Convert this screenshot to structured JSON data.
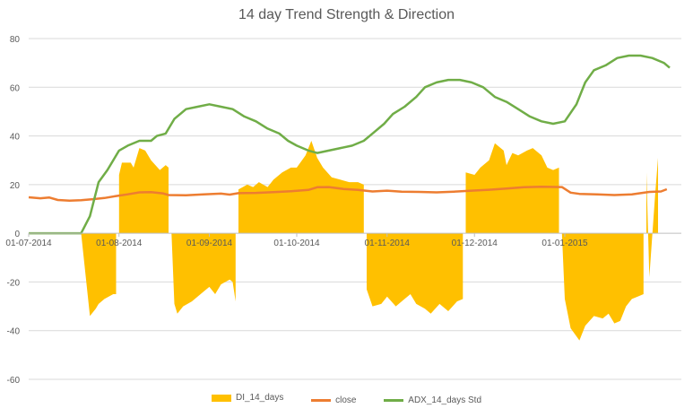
{
  "chart_data": {
    "type": "area",
    "title": "14 day Trend Strength & Direction",
    "ylim": [
      -60,
      80
    ],
    "yticks": [
      80,
      60,
      40,
      20,
      0,
      -20,
      -40,
      -60
    ],
    "x_date_range": [
      "2014-07-01",
      "2015-02-10"
    ],
    "xticks": [
      {
        "date": "2014-07-01",
        "label": "01-07-2014"
      },
      {
        "date": "2014-08-01",
        "label": "01-08-2014"
      },
      {
        "date": "2014-09-01",
        "label": "01-09-2014"
      },
      {
        "date": "2014-10-01",
        "label": "01-10-2014"
      },
      {
        "date": "2014-11-01",
        "label": "01-11-2014"
      },
      {
        "date": "2014-12-01",
        "label": "01-12-2014"
      },
      {
        "date": "2015-01-01",
        "label": "01-01-2015"
      }
    ],
    "grid": "horizontal",
    "legend_position": "bottom",
    "series": [
      {
        "name": "DI_14_days",
        "type": "area",
        "color": "#FFC000",
        "points": [
          [
            "2014-07-19",
            0
          ],
          [
            "2014-07-22",
            -34
          ],
          [
            "2014-07-24",
            -31
          ],
          [
            "2014-07-25",
            -29
          ],
          [
            "2014-07-27",
            -27
          ],
          [
            "2014-07-30",
            -25
          ],
          [
            "2014-07-31",
            -25
          ],
          [
            "2014-07-31",
            0
          ],
          [
            "2014-08-01",
            0
          ],
          [
            "2014-08-01",
            24
          ],
          [
            "2014-08-02",
            29
          ],
          [
            "2014-08-05",
            29
          ],
          [
            "2014-08-06",
            27
          ],
          [
            "2014-08-08",
            35
          ],
          [
            "2014-08-10",
            34
          ],
          [
            "2014-08-12",
            30
          ],
          [
            "2014-08-15",
            26
          ],
          [
            "2014-08-17",
            28
          ],
          [
            "2014-08-18",
            27
          ],
          [
            "2014-08-18",
            0
          ],
          [
            "2014-08-19",
            0
          ],
          [
            "2014-08-20",
            -29
          ],
          [
            "2014-08-21",
            -33
          ],
          [
            "2014-08-23",
            -30
          ],
          [
            "2014-08-26",
            -28
          ],
          [
            "2014-08-30",
            -24
          ],
          [
            "2014-09-01",
            -22
          ],
          [
            "2014-09-03",
            -25
          ],
          [
            "2014-09-05",
            -21
          ],
          [
            "2014-09-08",
            -19
          ],
          [
            "2014-09-09",
            -20
          ],
          [
            "2014-09-10",
            -28
          ],
          [
            "2014-09-10",
            0
          ],
          [
            "2014-09-11",
            0
          ],
          [
            "2014-09-11",
            18
          ],
          [
            "2014-09-14",
            20
          ],
          [
            "2014-09-16",
            19
          ],
          [
            "2014-09-18",
            21
          ],
          [
            "2014-09-21",
            19
          ],
          [
            "2014-09-23",
            22
          ],
          [
            "2014-09-26",
            25
          ],
          [
            "2014-09-29",
            27
          ],
          [
            "2014-10-01",
            27
          ],
          [
            "2014-10-04",
            32
          ],
          [
            "2014-10-06",
            38
          ],
          [
            "2014-10-08",
            31
          ],
          [
            "2014-10-10",
            27
          ],
          [
            "2014-10-13",
            23
          ],
          [
            "2014-10-16",
            22
          ],
          [
            "2014-10-19",
            21
          ],
          [
            "2014-10-22",
            21
          ],
          [
            "2014-10-24",
            20
          ],
          [
            "2014-10-24",
            0
          ],
          [
            "2014-10-25",
            0
          ],
          [
            "2014-10-25",
            -23
          ],
          [
            "2014-10-27",
            -30
          ],
          [
            "2014-10-30",
            -29
          ],
          [
            "2014-11-01",
            -26
          ],
          [
            "2014-11-04",
            -30
          ],
          [
            "2014-11-07",
            -27
          ],
          [
            "2014-11-09",
            -25
          ],
          [
            "2014-11-11",
            -29
          ],
          [
            "2014-11-14",
            -31
          ],
          [
            "2014-11-16",
            -33
          ],
          [
            "2014-11-19",
            -29
          ],
          [
            "2014-11-22",
            -32
          ],
          [
            "2014-11-25",
            -28
          ],
          [
            "2014-11-27",
            -27
          ],
          [
            "2014-11-27",
            0
          ],
          [
            "2014-11-28",
            0
          ],
          [
            "2014-11-28",
            25
          ],
          [
            "2014-12-01",
            24
          ],
          [
            "2014-12-03",
            27
          ],
          [
            "2014-12-06",
            30
          ],
          [
            "2014-12-08",
            37
          ],
          [
            "2014-12-11",
            34
          ],
          [
            "2014-12-12",
            28
          ],
          [
            "2014-12-14",
            33
          ],
          [
            "2014-12-16",
            32
          ],
          [
            "2014-12-19",
            34
          ],
          [
            "2014-12-21",
            35
          ],
          [
            "2014-12-24",
            32
          ],
          [
            "2014-12-26",
            27
          ],
          [
            "2014-12-28",
            26
          ],
          [
            "2014-12-30",
            27
          ],
          [
            "2014-12-30",
            0
          ],
          [
            "2014-12-31",
            0
          ],
          [
            "2015-01-01",
            -27
          ],
          [
            "2015-01-03",
            -39
          ],
          [
            "2015-01-06",
            -44
          ],
          [
            "2015-01-08",
            -38
          ],
          [
            "2015-01-11",
            -34
          ],
          [
            "2015-01-14",
            -35
          ],
          [
            "2015-01-16",
            -33
          ],
          [
            "2015-01-18",
            -37
          ],
          [
            "2015-01-20",
            -36
          ],
          [
            "2015-01-22",
            -30
          ],
          [
            "2015-01-24",
            -27
          ],
          [
            "2015-01-26",
            -26
          ],
          [
            "2015-01-28",
            -25
          ],
          [
            "2015-01-28",
            0
          ],
          [
            "2015-01-29",
            0
          ],
          [
            "2015-01-29",
            25
          ],
          [
            "2015-01-30",
            -18
          ],
          [
            "2015-02-01",
            16
          ],
          [
            "2015-02-02",
            31
          ],
          [
            "2015-02-02",
            0
          ]
        ]
      },
      {
        "name": "close",
        "type": "line",
        "color": "#ED7D31",
        "points": [
          [
            "2014-07-01",
            14.8
          ],
          [
            "2014-07-05",
            14.4
          ],
          [
            "2014-07-08",
            14.7
          ],
          [
            "2014-07-11",
            13.7
          ],
          [
            "2014-07-15",
            13.4
          ],
          [
            "2014-07-19",
            13.6
          ],
          [
            "2014-07-23",
            14.0
          ],
          [
            "2014-07-27",
            14.5
          ],
          [
            "2014-07-31",
            15.3
          ],
          [
            "2014-08-04",
            16.0
          ],
          [
            "2014-08-08",
            16.8
          ],
          [
            "2014-08-12",
            16.9
          ],
          [
            "2014-08-16",
            16.4
          ],
          [
            "2014-08-18",
            15.7
          ],
          [
            "2014-08-24",
            15.6
          ],
          [
            "2014-08-30",
            16.0
          ],
          [
            "2014-09-05",
            16.3
          ],
          [
            "2014-09-08",
            15.9
          ],
          [
            "2014-09-11",
            16.5
          ],
          [
            "2014-09-17",
            16.6
          ],
          [
            "2014-09-23",
            16.9
          ],
          [
            "2014-09-29",
            17.3
          ],
          [
            "2014-10-05",
            17.8
          ],
          [
            "2014-10-08",
            18.9
          ],
          [
            "2014-10-12",
            19.0
          ],
          [
            "2014-10-17",
            18.2
          ],
          [
            "2014-10-22",
            17.8
          ],
          [
            "2014-10-27",
            17.2
          ],
          [
            "2014-11-01",
            17.5
          ],
          [
            "2014-11-06",
            17.1
          ],
          [
            "2014-11-12",
            17.0
          ],
          [
            "2014-11-18",
            16.8
          ],
          [
            "2014-11-24",
            17.1
          ],
          [
            "2014-11-30",
            17.5
          ],
          [
            "2014-12-06",
            17.9
          ],
          [
            "2014-12-12",
            18.4
          ],
          [
            "2014-12-18",
            18.9
          ],
          [
            "2014-12-24",
            19.1
          ],
          [
            "2014-12-31",
            19.0
          ],
          [
            "2015-01-03",
            16.7
          ],
          [
            "2015-01-06",
            16.2
          ],
          [
            "2015-01-12",
            16.0
          ],
          [
            "2015-01-18",
            15.7
          ],
          [
            "2015-01-24",
            16.0
          ],
          [
            "2015-01-30",
            17.0
          ],
          [
            "2015-02-03",
            17.2
          ],
          [
            "2015-02-05",
            18.1
          ]
        ]
      },
      {
        "name": "ADX_14_days Std",
        "type": "line",
        "color": "#70AD47",
        "points": [
          [
            "2014-07-01",
            0
          ],
          [
            "2014-07-19",
            0
          ],
          [
            "2014-07-22",
            7
          ],
          [
            "2014-07-25",
            21
          ],
          [
            "2014-07-28",
            26
          ],
          [
            "2014-08-01",
            34
          ],
          [
            "2014-08-04",
            36
          ],
          [
            "2014-08-08",
            38
          ],
          [
            "2014-08-12",
            38
          ],
          [
            "2014-08-14",
            40
          ],
          [
            "2014-08-17",
            41
          ],
          [
            "2014-08-20",
            47
          ],
          [
            "2014-08-24",
            51
          ],
          [
            "2014-08-28",
            52
          ],
          [
            "2014-09-01",
            53
          ],
          [
            "2014-09-05",
            52
          ],
          [
            "2014-09-09",
            51
          ],
          [
            "2014-09-13",
            48
          ],
          [
            "2014-09-17",
            46
          ],
          [
            "2014-09-21",
            43
          ],
          [
            "2014-09-25",
            41
          ],
          [
            "2014-09-28",
            38
          ],
          [
            "2014-10-01",
            36
          ],
          [
            "2014-10-05",
            34
          ],
          [
            "2014-10-08",
            33
          ],
          [
            "2014-10-12",
            34
          ],
          [
            "2014-10-16",
            35
          ],
          [
            "2014-10-20",
            36
          ],
          [
            "2014-10-24",
            38
          ],
          [
            "2014-10-27",
            41
          ],
          [
            "2014-10-31",
            45
          ],
          [
            "2014-11-03",
            49
          ],
          [
            "2014-11-07",
            52
          ],
          [
            "2014-11-11",
            56
          ],
          [
            "2014-11-14",
            60
          ],
          [
            "2014-11-18",
            62
          ],
          [
            "2014-11-22",
            63
          ],
          [
            "2014-11-26",
            63
          ],
          [
            "2014-11-30",
            62
          ],
          [
            "2014-12-04",
            60
          ],
          [
            "2014-12-08",
            56
          ],
          [
            "2014-12-12",
            54
          ],
          [
            "2014-12-16",
            51
          ],
          [
            "2014-12-20",
            48
          ],
          [
            "2014-12-24",
            46
          ],
          [
            "2014-12-28",
            45
          ],
          [
            "2015-01-01",
            46
          ],
          [
            "2015-01-05",
            53
          ],
          [
            "2015-01-08",
            62
          ],
          [
            "2015-01-11",
            67
          ],
          [
            "2015-01-15",
            69
          ],
          [
            "2015-01-19",
            72
          ],
          [
            "2015-01-23",
            73
          ],
          [
            "2015-01-27",
            73
          ],
          [
            "2015-01-31",
            72
          ],
          [
            "2015-02-04",
            70
          ],
          [
            "2015-02-06",
            68
          ]
        ]
      }
    ]
  }
}
